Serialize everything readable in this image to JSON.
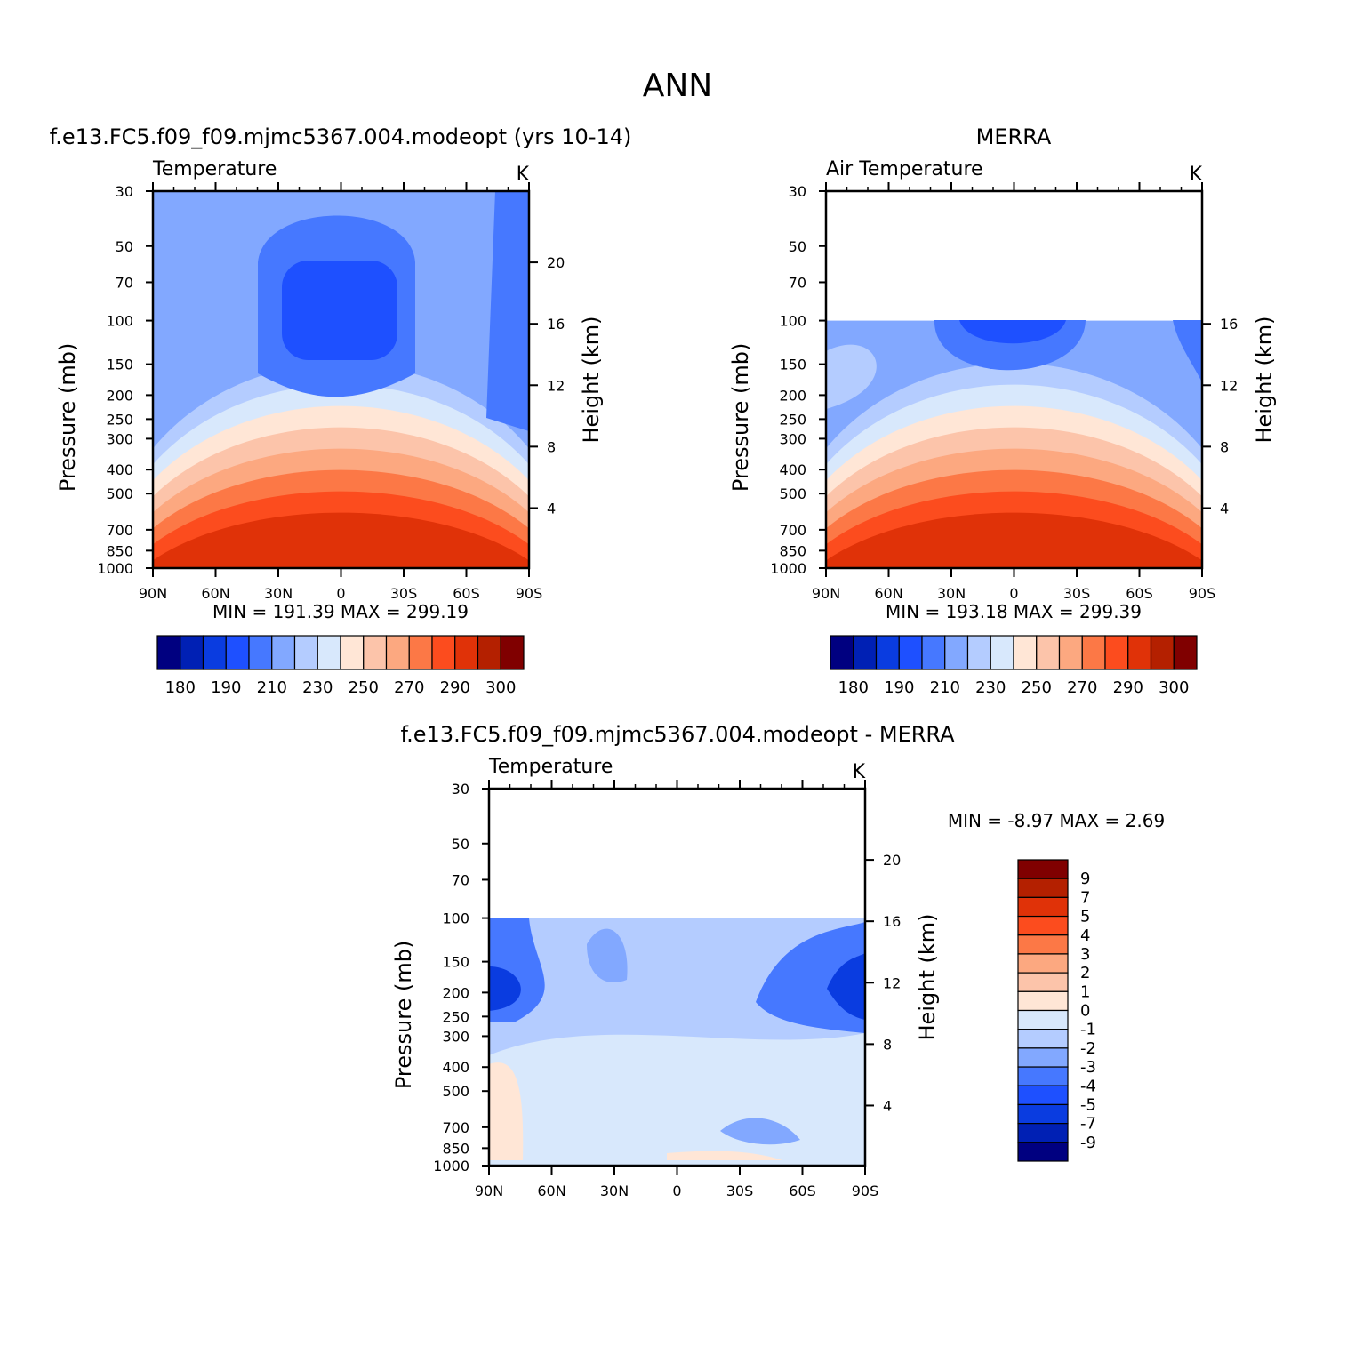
{
  "figure_title": "ANN",
  "y_ticks_pressure": [
    "30",
    "50",
    "70",
    "100",
    "150",
    "200",
    "250",
    "300",
    "400",
    "500",
    "700",
    "850",
    "1000"
  ],
  "x_ticks": [
    "90N",
    "60N",
    "30N",
    "0",
    "30S",
    "60S",
    "90S"
  ],
  "panels": [
    {
      "id": "model",
      "title": "f.e13.FC5.f09_f09.mjmc5367.004.modeopt (yrs 10-14)",
      "left_label": "Temperature",
      "units": "K",
      "ylabel": "Pressure (mb)",
      "ylabel_right": "Height (km)",
      "height_ticks": [
        "20",
        "16",
        "12",
        "8",
        "4"
      ],
      "stats": "MIN =  191.39   MAX =  299.19",
      "top_pressure": 30
    },
    {
      "id": "obs",
      "title": "MERRA",
      "left_label": "Air Temperature",
      "units": "K",
      "ylabel": "Pressure (mb)",
      "ylabel_right": "Height (km)",
      "height_ticks": [
        "16",
        "12",
        "8",
        "4"
      ],
      "stats": "MIN =  193.18   MAX =  299.39",
      "top_pressure": 100
    },
    {
      "id": "diff",
      "title": "f.e13.FC5.f09_f09.mjmc5367.004.modeopt - MERRA",
      "left_label": "Temperature",
      "units": "K",
      "ylabel": "Pressure (mb)",
      "ylabel_right": "Height (km)",
      "height_ticks": [
        "20",
        "16",
        "12",
        "8",
        "4"
      ],
      "stats": "MIN =    -8.97   MAX =      2.69",
      "top_pressure": 100
    }
  ],
  "colorbar_abs": {
    "labels": [
      "180",
      "190",
      "210",
      "230",
      "250",
      "270",
      "290",
      "300"
    ],
    "colors": [
      "#000080",
      "#0020b4",
      "#0a3ce0",
      "#1e50ff",
      "#4678ff",
      "#82a8ff",
      "#b4ccff",
      "#d8e8fc",
      "#ffe6d6",
      "#fcc4aa",
      "#fca880",
      "#fc7846",
      "#fc4c1e",
      "#e03208",
      "#b42000",
      "#800000"
    ]
  },
  "colorbar_diff": {
    "labels": [
      "9",
      "7",
      "5",
      "4",
      "3",
      "2",
      "1",
      "0",
      "-1",
      "-2",
      "-3",
      "-4",
      "-5",
      "-7",
      "-9"
    ],
    "colors": [
      "#800000",
      "#b42000",
      "#e03208",
      "#fc4c1e",
      "#fc7846",
      "#fca880",
      "#fcc4aa",
      "#ffe6d6",
      "#d8e8fc",
      "#b4ccff",
      "#82a8ff",
      "#4678ff",
      "#1e50ff",
      "#0a3ce0",
      "#0020b4",
      "#000080"
    ]
  },
  "chart_data": [
    {
      "type": "heatmap",
      "title": "f.e13.FC5.f09_f09.mjmc5367.004.modeopt (yrs 10-14)",
      "xlabel": "",
      "ylabel": "Pressure (mb)",
      "x": [
        "90N",
        "60N",
        "30N",
        "0",
        "30S",
        "60S",
        "90S"
      ],
      "y": [
        30,
        50,
        70,
        100,
        150,
        200,
        250,
        300,
        400,
        500,
        700,
        850,
        1000
      ],
      "min": 191.39,
      "max": 299.19,
      "units": "K"
    },
    {
      "type": "heatmap",
      "title": "MERRA",
      "xlabel": "",
      "ylabel": "Pressure (mb)",
      "x": [
        "90N",
        "60N",
        "30N",
        "0",
        "30S",
        "60S",
        "90S"
      ],
      "y": [
        30,
        50,
        70,
        100,
        150,
        200,
        250,
        300,
        400,
        500,
        700,
        850,
        1000
      ],
      "min": 193.18,
      "max": 299.39,
      "units": "K"
    },
    {
      "type": "heatmap",
      "title": "f.e13.FC5.f09_f09.mjmc5367.004.modeopt - MERRA",
      "xlabel": "",
      "ylabel": "Pressure (mb)",
      "x": [
        "90N",
        "60N",
        "30N",
        "0",
        "30S",
        "60S",
        "90S"
      ],
      "y": [
        30,
        50,
        70,
        100,
        150,
        200,
        250,
        300,
        400,
        500,
        700,
        850,
        1000
      ],
      "min": -8.97,
      "max": 2.69,
      "units": "K"
    }
  ]
}
